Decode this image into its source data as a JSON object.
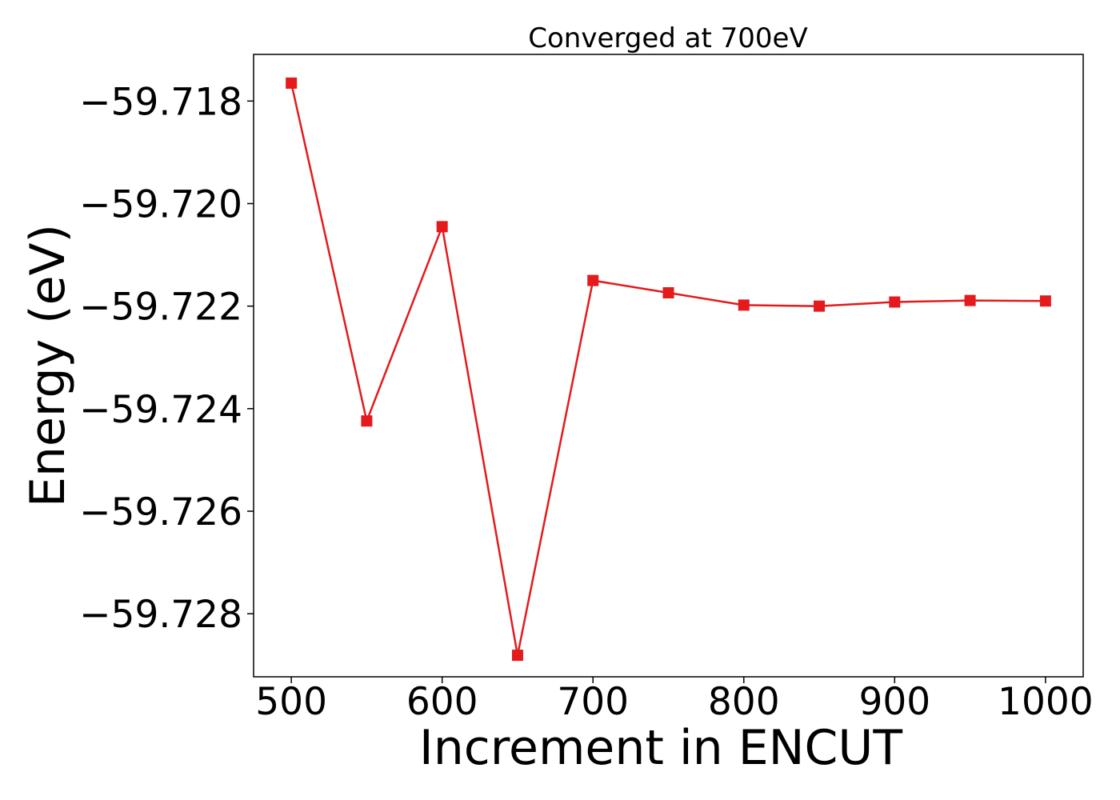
{
  "chart_data": {
    "type": "line",
    "title": "Converged at 700eV",
    "xlabel": "Increment in ENCUT",
    "ylabel": "Energy (eV)",
    "x": [
      500,
      550,
      600,
      650,
      700,
      750,
      800,
      850,
      900,
      950,
      1000
    ],
    "series": [
      {
        "values": [
          -59.71765,
          -59.72424,
          -59.72045,
          -59.72881,
          -59.7215,
          -59.72174,
          -59.72198,
          -59.722,
          -59.72192,
          -59.72189,
          -59.7219
        ],
        "color": "#e41a1c",
        "marker": "square"
      }
    ],
    "xticks": [
      500,
      600,
      700,
      800,
      900,
      1000
    ],
    "xtick_labels": [
      "500",
      "600",
      "700",
      "800",
      "900",
      "1000"
    ],
    "yticks": [
      -59.718,
      -59.72,
      -59.722,
      -59.724,
      -59.726,
      -59.728
    ],
    "ytick_labels": [
      "−59.718",
      "−59.720",
      "−59.722",
      "−59.724",
      "−59.726",
      "−59.728"
    ],
    "xlim": [
      475,
      1025
    ],
    "ylim": [
      -59.72923,
      -59.71709
    ],
    "grid": false,
    "legend": "none"
  }
}
